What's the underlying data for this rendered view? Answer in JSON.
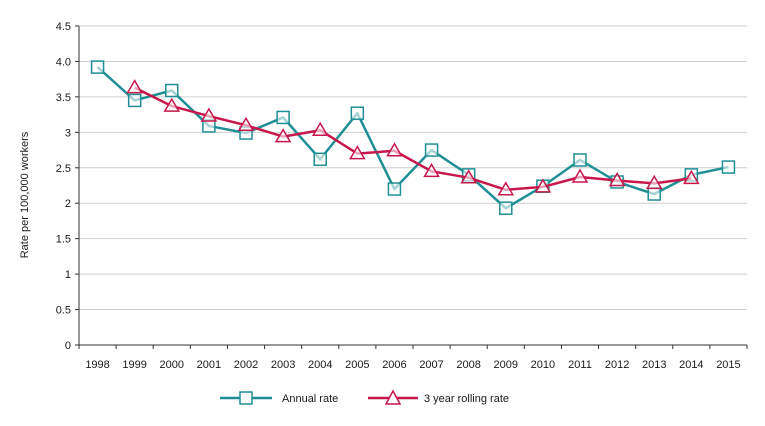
{
  "chart_data": {
    "type": "line",
    "title": "",
    "xlabel": "",
    "ylabel": "Rate per 100,000 workers",
    "ylim": [
      0,
      4.5
    ],
    "yticks": [
      "0",
      "0.5",
      "1",
      "1.5",
      "2",
      "2.5",
      "3",
      "3.5",
      "4.0",
      "4.5"
    ],
    "ytick_values": [
      0,
      0.5,
      1,
      1.5,
      2,
      2.5,
      3,
      3.5,
      4.0,
      4.5
    ],
    "categories": [
      "1998",
      "1999",
      "2000",
      "2001",
      "2002",
      "2003",
      "2004",
      "2005",
      "2006",
      "2007",
      "2008",
      "2009",
      "2010",
      "2011",
      "2012",
      "2013",
      "2014",
      "2015"
    ],
    "grid": true,
    "legend_position": "bottom",
    "series": [
      {
        "name": "Annual rate",
        "color": "#1f8f95",
        "marker": "square",
        "values": [
          3.92,
          3.45,
          3.59,
          3.09,
          2.99,
          3.21,
          2.62,
          3.27,
          2.2,
          2.75,
          2.4,
          1.93,
          2.24,
          2.61,
          2.3,
          2.13,
          2.4,
          2.51
        ]
      },
      {
        "name": "3 year rolling rate",
        "color": "#c8174a",
        "marker": "triangle",
        "values": [
          null,
          3.63,
          3.37,
          3.23,
          3.1,
          2.94,
          3.03,
          2.7,
          2.74,
          2.45,
          2.36,
          2.19,
          2.23,
          2.37,
          2.32,
          2.28,
          2.35,
          null
        ]
      }
    ]
  }
}
